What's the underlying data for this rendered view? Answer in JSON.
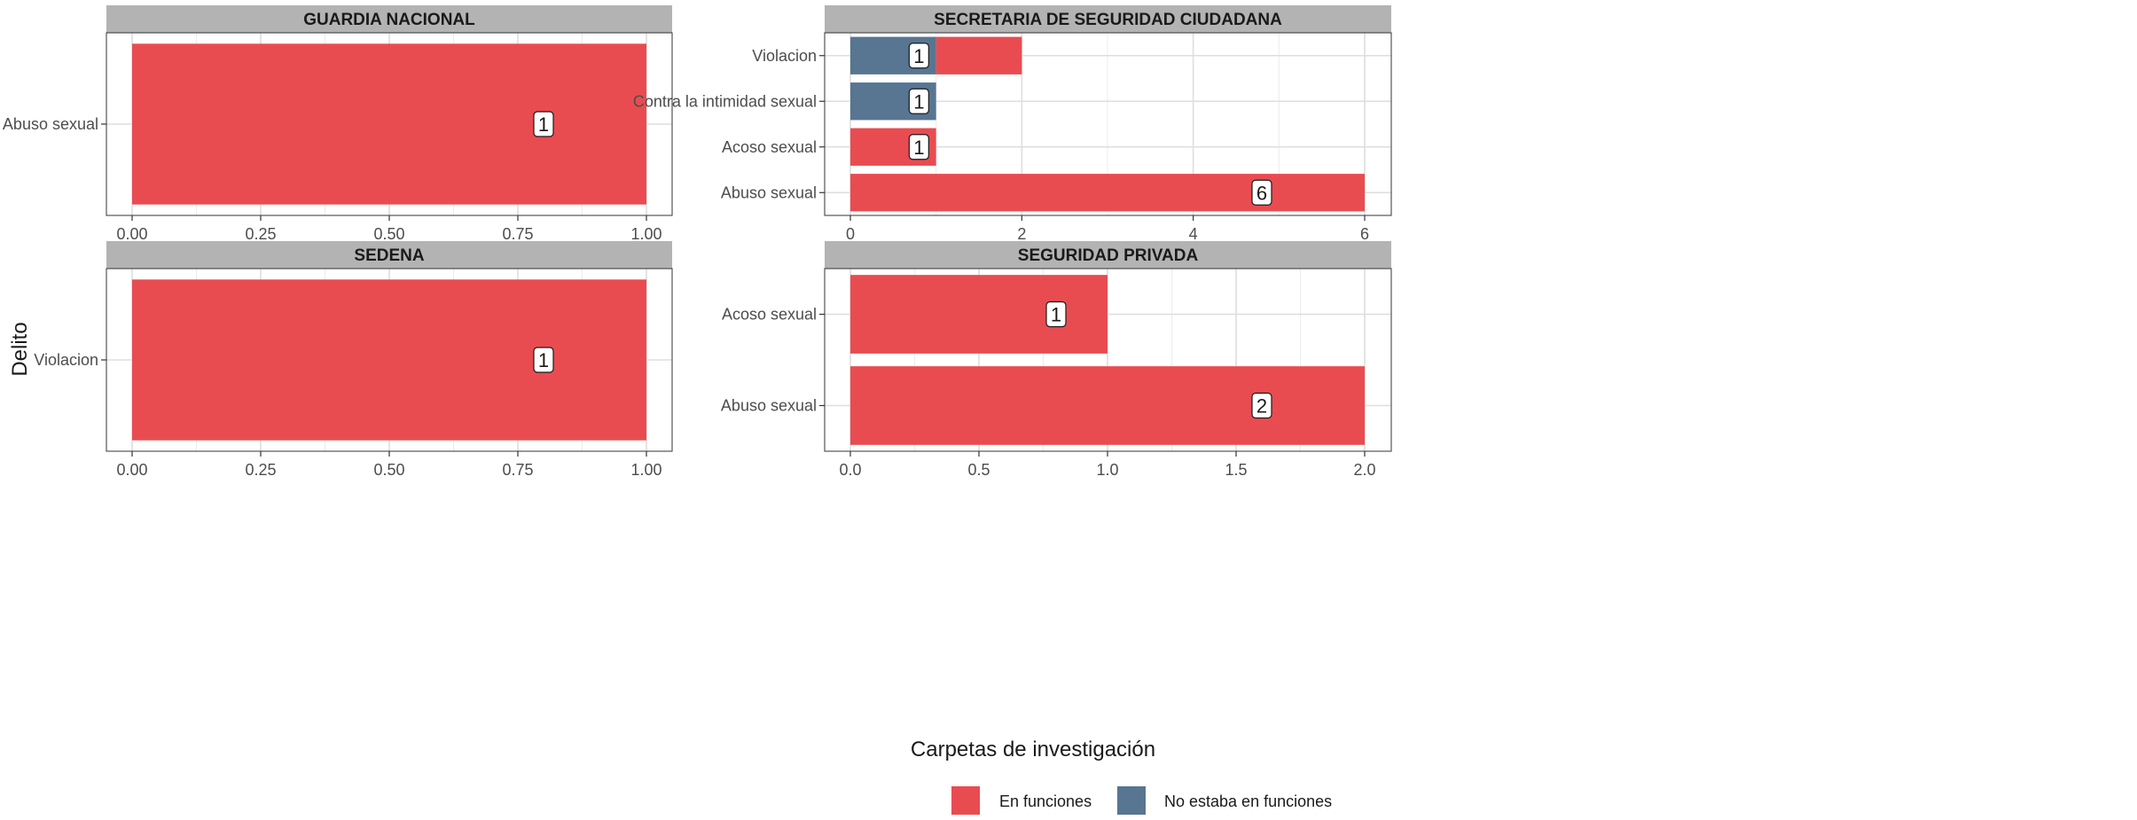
{
  "chart_data": {
    "type": "bar",
    "orientation": "horizontal",
    "facet_layout": "2x2",
    "xlabel": "Carpetas de investigación",
    "ylabel": "Delito",
    "legend": {
      "position": "bottom",
      "items": [
        {
          "name": "En funciones",
          "color": "#e84c51"
        },
        {
          "name": "No estaba en funciones",
          "color": "#587591"
        }
      ]
    },
    "grid": true,
    "panels": [
      {
        "title": "GUARDIA NACIONAL",
        "xlim": [
          0,
          1
        ],
        "xticks": [
          0,
          0.25,
          0.5,
          0.75,
          1
        ],
        "xtick_labels": [
          "0.00",
          "0.25",
          "0.50",
          "0.75",
          "1.00"
        ],
        "categories": [
          "Abuso sexual"
        ],
        "bars": [
          {
            "category": "Abuso sexual",
            "segments": [
              {
                "series": "En funciones",
                "value": 1
              }
            ],
            "label": "1"
          }
        ]
      },
      {
        "title": "SECRETARIA DE SEGURIDAD CIUDADANA",
        "xlim": [
          0,
          6
        ],
        "xticks": [
          0,
          2,
          4,
          6
        ],
        "xtick_labels": [
          "0",
          "2",
          "4",
          "6"
        ],
        "categories": [
          "Violacion",
          "Contra la intimidad sexual",
          "Acoso sexual",
          "Abuso sexual"
        ],
        "bars": [
          {
            "category": "Violacion",
            "segments": [
              {
                "series": "No estaba en funciones",
                "value": 1
              },
              {
                "series": "En funciones",
                "value": 1
              }
            ],
            "label": "1"
          },
          {
            "category": "Contra la intimidad sexual",
            "segments": [
              {
                "series": "No estaba en funciones",
                "value": 1
              }
            ],
            "label": "1"
          },
          {
            "category": "Acoso sexual",
            "segments": [
              {
                "series": "En funciones",
                "value": 1
              }
            ],
            "label": "1"
          },
          {
            "category": "Abuso sexual",
            "segments": [
              {
                "series": "En funciones",
                "value": 6
              }
            ],
            "label": "6"
          }
        ]
      },
      {
        "title": "SEDENA",
        "xlim": [
          0,
          1
        ],
        "xticks": [
          0,
          0.25,
          0.5,
          0.75,
          1
        ],
        "xtick_labels": [
          "0.00",
          "0.25",
          "0.50",
          "0.75",
          "1.00"
        ],
        "categories": [
          "Violacion"
        ],
        "bars": [
          {
            "category": "Violacion",
            "segments": [
              {
                "series": "En funciones",
                "value": 1
              }
            ],
            "label": "1"
          }
        ]
      },
      {
        "title": "SEGURIDAD PRIVADA",
        "xlim": [
          0,
          2
        ],
        "xticks": [
          0,
          0.5,
          1,
          1.5,
          2
        ],
        "xtick_labels": [
          "0.0",
          "0.5",
          "1.0",
          "1.5",
          "2.0"
        ],
        "categories": [
          "Acoso sexual",
          "Abuso sexual"
        ],
        "bars": [
          {
            "category": "Acoso sexual",
            "segments": [
              {
                "series": "En funciones",
                "value": 1
              }
            ],
            "label": "1"
          },
          {
            "category": "Abuso sexual",
            "segments": [
              {
                "series": "En funciones",
                "value": 2
              }
            ],
            "label": "2"
          }
        ]
      }
    ]
  }
}
